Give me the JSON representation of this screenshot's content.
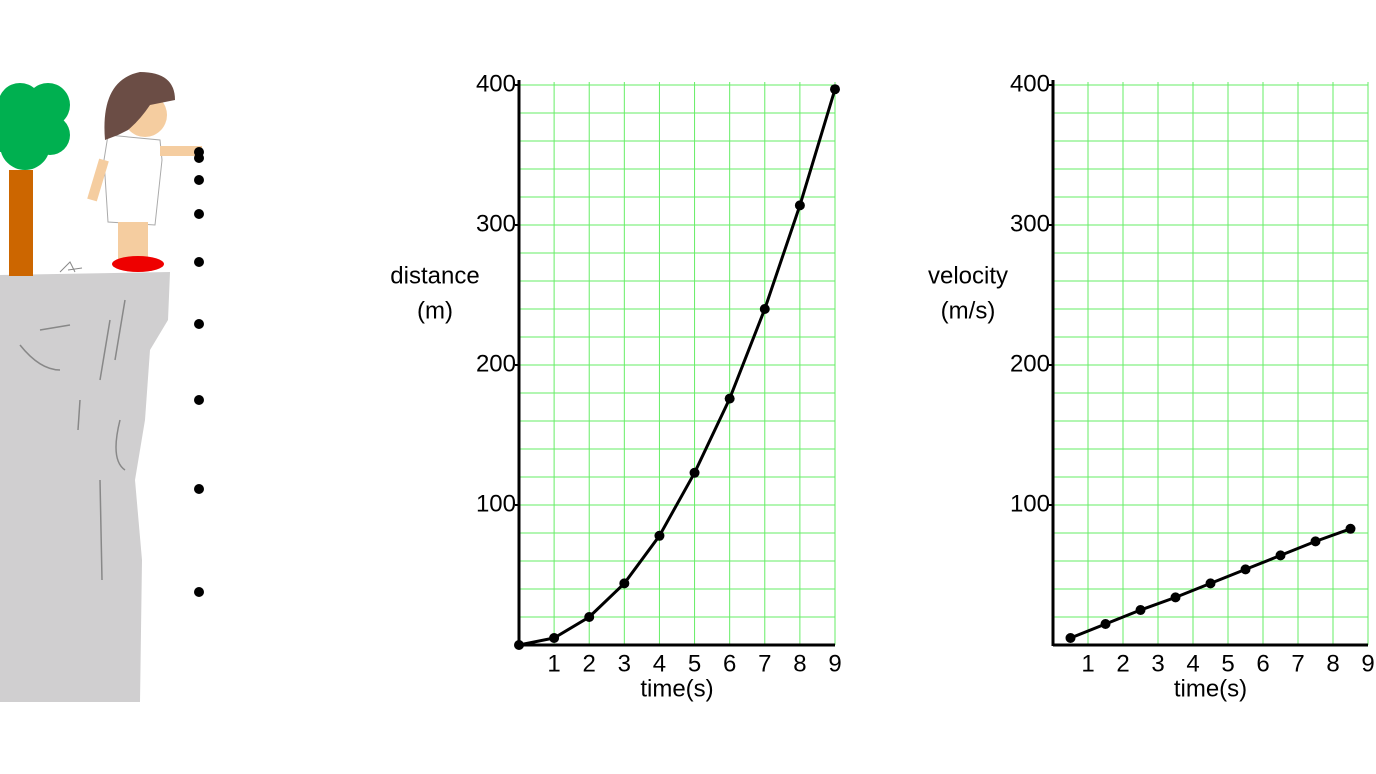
{
  "chart_data": [
    {
      "type": "line",
      "y_label": [
        "distance",
        "(m)"
      ],
      "x_label": "time(s)",
      "x": [
        0,
        1,
        2,
        3,
        4,
        5,
        6,
        7,
        8,
        9
      ],
      "series": [
        {
          "color": "#000000",
          "values": [
            0,
            5,
            20,
            44,
            78,
            123,
            176,
            240,
            314,
            397
          ]
        }
      ],
      "xlim": [
        0,
        9
      ],
      "xticks": [
        1,
        2,
        3,
        4,
        5,
        6,
        7,
        8,
        9
      ],
      "ylim": [
        0,
        400
      ],
      "yticks": [
        100,
        200,
        300,
        400
      ],
      "grid": true,
      "grid_color": "#66ee66"
    },
    {
      "type": "line",
      "y_label": [
        "velocity",
        "(m/s)"
      ],
      "x_label": "time(s)",
      "x": [
        0.5,
        1.5,
        2.5,
        3.5,
        4.5,
        5.5,
        6.5,
        7.5,
        8.5
      ],
      "series": [
        {
          "color": "#000000",
          "values": [
            5,
            15,
            25,
            34,
            44,
            54,
            64,
            74,
            83
          ]
        }
      ],
      "xlim": [
        0,
        9
      ],
      "xticks": [
        1,
        2,
        3,
        4,
        5,
        6,
        7,
        8,
        9
      ],
      "ylim": [
        0,
        400
      ],
      "yticks": [
        100,
        200,
        300,
        400
      ],
      "grid": true,
      "grid_color": "#66ee66"
    }
  ]
}
